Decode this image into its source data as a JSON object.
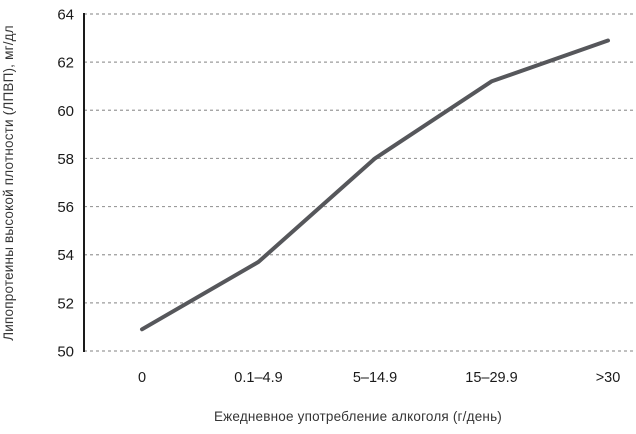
{
  "chart_data": {
    "type": "line",
    "categories": [
      "0",
      "0.1–4.9",
      "5–14.9",
      "15–29.9",
      ">30"
    ],
    "values": [
      50.9,
      53.7,
      58.0,
      61.2,
      62.9
    ],
    "title": "",
    "xlabel": "Ежедневное употребление алкоголя (г/день)",
    "ylabel": "Липопротеины высокой плотности (ЛПВП), мг/дл",
    "ylim": [
      50,
      64
    ],
    "ytick_step": 2,
    "yticks": [
      "50",
      "52",
      "54",
      "56",
      "58",
      "60",
      "62",
      "64"
    ],
    "grid": "horizontal-dashed",
    "legend": "none",
    "markers": "none",
    "colors": {
      "line": "#56575b",
      "grid": "#9b9b9b",
      "axis": "#1a1a1a",
      "tick_text": "#1a1a1a",
      "title_text": "#353535",
      "background": "#ffffff"
    }
  }
}
